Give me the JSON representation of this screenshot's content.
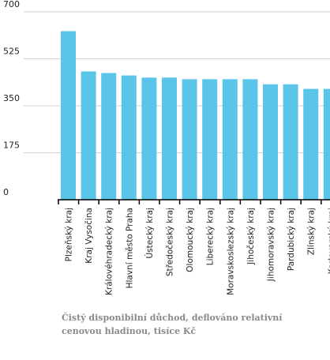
{
  "chart_data": {
    "type": "bar",
    "title": "",
    "xlabel": "",
    "ylabel": "",
    "categories": [
      "Plzeňský kraj",
      "Kraj Vysočina",
      "Královéhradecký kraj",
      "Hlavní město Praha",
      "Ústecký kraj",
      "Středočeský kraj",
      "Olomoucký kraj",
      "Liberecký kraj",
      "Moravskoslezský kraj",
      "Jihočeský kraj",
      "Jihomoravský kraj",
      "Pardubický kraj",
      "Zlínský kraj",
      "Karlovarský kraj"
    ],
    "values": [
      628,
      478,
      472,
      463,
      455,
      455,
      449,
      449,
      449,
      449,
      430,
      430,
      413,
      413
    ],
    "ylim": [
      0,
      700
    ],
    "yticks": [
      "0",
      "175",
      "350",
      "525",
      "700"
    ],
    "grid": true,
    "bar_color": "#5bc5e9",
    "axis_color": "#000000",
    "grid_color": "#d0d0d0"
  },
  "caption": "Čistý disponibilní důchod, deflováno relativní cenovou hladinou, tisíce Kč"
}
